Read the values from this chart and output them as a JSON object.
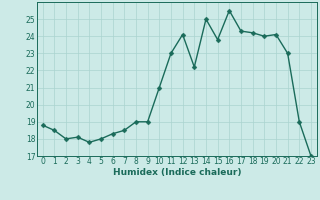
{
  "x": [
    0,
    1,
    2,
    3,
    4,
    5,
    6,
    7,
    8,
    9,
    10,
    11,
    12,
    13,
    14,
    15,
    16,
    17,
    18,
    19,
    20,
    21,
    22,
    23
  ],
  "y": [
    18.8,
    18.5,
    18.0,
    18.1,
    17.8,
    18.0,
    18.3,
    18.5,
    19.0,
    19.0,
    21.0,
    23.0,
    24.1,
    22.2,
    25.0,
    23.8,
    25.5,
    24.3,
    24.2,
    24.0,
    24.1,
    23.0,
    19.0,
    17.0
  ],
  "line_color": "#1a6b5a",
  "marker_color": "#1a6b5a",
  "bg_color": "#cceae7",
  "grid_color": "#aad4d0",
  "xlabel": "Humidex (Indice chaleur)",
  "ylim": [
    17,
    26
  ],
  "xlim": [
    -0.5,
    23.5
  ],
  "yticks": [
    17,
    18,
    19,
    20,
    21,
    22,
    23,
    24,
    25
  ],
  "xticks": [
    0,
    1,
    2,
    3,
    4,
    5,
    6,
    7,
    8,
    9,
    10,
    11,
    12,
    13,
    14,
    15,
    16,
    17,
    18,
    19,
    20,
    21,
    22,
    23
  ],
  "tick_fontsize": 5.5,
  "xlabel_fontsize": 6.5,
  "line_width": 1.0,
  "marker_size": 2.5
}
